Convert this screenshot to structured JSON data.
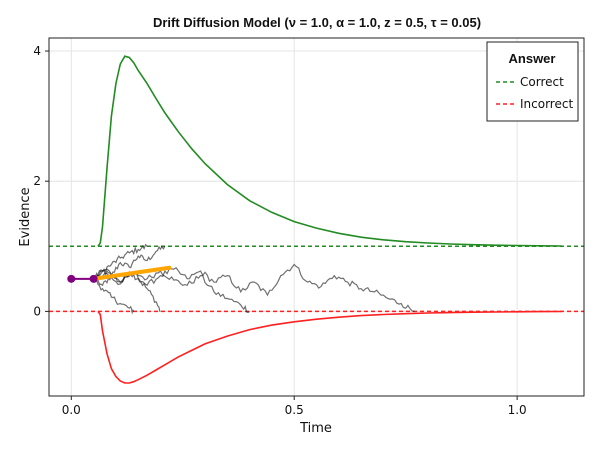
{
  "chart_data": {
    "type": "line",
    "title": "Drift Diffusion Model (ν = 1.0, α = 1.0, z = 0.5, τ = 0.05)",
    "xlabel": "Time",
    "ylabel": "Evidence",
    "xlim": [
      -0.05,
      1.15
    ],
    "ylim": [
      -1.3,
      4.2
    ],
    "xticks": [
      0.0,
      0.5,
      1.0
    ],
    "xtick_labels": [
      "0.0",
      "0.5",
      "1.0"
    ],
    "yticks": [
      0,
      2,
      4
    ],
    "ytick_labels": [
      "0",
      "2",
      "4"
    ],
    "grid": true,
    "legend": {
      "title": "Answer",
      "position": "top-right",
      "entries": [
        {
          "label": "Correct",
          "color": "#228b22",
          "style": "dashed"
        },
        {
          "label": "Incorrect",
          "color": "#ff2020",
          "style": "dashed"
        }
      ]
    },
    "thresholds": [
      {
        "name": "Correct",
        "y": 1.0,
        "color": "#228b22"
      },
      {
        "name": "Incorrect",
        "y": 0.0,
        "color": "#ff2020"
      }
    ],
    "density_correct": {
      "color": "#228b22",
      "x": [
        0.06,
        0.065,
        0.07,
        0.08,
        0.09,
        0.1,
        0.11,
        0.12,
        0.13,
        0.14,
        0.15,
        0.17,
        0.19,
        0.21,
        0.24,
        0.27,
        0.3,
        0.35,
        0.4,
        0.45,
        0.5,
        0.55,
        0.6,
        0.65,
        0.7,
        0.75,
        0.8,
        0.85,
        0.9,
        0.95,
        1.0,
        1.05,
        1.1
      ],
      "y": [
        1.0,
        1.05,
        1.3,
        2.2,
        3.0,
        3.5,
        3.8,
        3.92,
        3.9,
        3.82,
        3.7,
        3.5,
        3.27,
        3.05,
        2.76,
        2.5,
        2.27,
        1.95,
        1.7,
        1.52,
        1.38,
        1.28,
        1.2,
        1.14,
        1.1,
        1.07,
        1.05,
        1.035,
        1.025,
        1.017,
        1.012,
        1.008,
        1.005
      ]
    },
    "density_incorrect": {
      "color": "#ff2020",
      "x": [
        0.06,
        0.065,
        0.07,
        0.08,
        0.09,
        0.1,
        0.11,
        0.12,
        0.13,
        0.14,
        0.15,
        0.17,
        0.19,
        0.21,
        0.24,
        0.27,
        0.3,
        0.35,
        0.4,
        0.45,
        0.5,
        0.55,
        0.6,
        0.65,
        0.7,
        0.75,
        0.8,
        0.85,
        0.9,
        0.95,
        1.0,
        1.05,
        1.1
      ],
      "y": [
        0.0,
        -0.05,
        -0.3,
        -0.65,
        -0.88,
        -1.0,
        -1.07,
        -1.1,
        -1.1,
        -1.08,
        -1.05,
        -0.98,
        -0.9,
        -0.82,
        -0.7,
        -0.6,
        -0.5,
        -0.38,
        -0.28,
        -0.21,
        -0.16,
        -0.12,
        -0.09,
        -0.065,
        -0.048,
        -0.035,
        -0.025,
        -0.018,
        -0.013,
        -0.009,
        -0.006,
        -0.004,
        -0.002
      ]
    },
    "non_decision": {
      "color": "#800080",
      "x": [
        0.0,
        0.05
      ],
      "y": [
        0.5,
        0.5
      ]
    },
    "drift": {
      "color": "#ffa500",
      "x": [
        0.05,
        0.22
      ],
      "y": [
        0.5,
        0.67
      ]
    },
    "traces": [
      {
        "x": [
          0.05,
          0.07,
          0.09,
          0.11,
          0.13,
          0.15,
          0.17,
          0.19,
          0.21
        ],
        "y": [
          0.5,
          0.62,
          0.55,
          0.75,
          0.68,
          0.85,
          0.78,
          0.92,
          1.0
        ]
      },
      {
        "x": [
          0.05,
          0.07,
          0.09,
          0.11,
          0.13,
          0.15,
          0.17,
          0.19,
          0.2
        ],
        "y": [
          0.5,
          0.4,
          0.55,
          0.45,
          0.6,
          0.5,
          0.35,
          0.15,
          0.0
        ]
      },
      {
        "x": [
          0.05,
          0.07,
          0.09,
          0.11,
          0.13,
          0.15,
          0.17
        ],
        "y": [
          0.5,
          0.62,
          0.72,
          0.82,
          0.9,
          0.95,
          1.0
        ]
      },
      {
        "x": [
          0.05,
          0.07,
          0.09,
          0.11,
          0.13,
          0.14
        ],
        "y": [
          0.5,
          0.35,
          0.22,
          0.12,
          0.05,
          0.0
        ]
      },
      {
        "x": [
          0.05,
          0.08,
          0.11,
          0.14,
          0.17,
          0.2,
          0.23,
          0.26,
          0.29,
          0.32,
          0.35,
          0.38,
          0.4
        ],
        "y": [
          0.5,
          0.58,
          0.42,
          0.6,
          0.5,
          0.62,
          0.48,
          0.4,
          0.55,
          0.3,
          0.2,
          0.1,
          0.0
        ]
      },
      {
        "x": [
          0.05,
          0.08,
          0.11,
          0.14,
          0.17,
          0.2,
          0.23,
          0.26,
          0.29,
          0.32,
          0.35,
          0.38,
          0.41,
          0.44,
          0.47,
          0.5,
          0.53,
          0.56,
          0.59,
          0.62,
          0.65,
          0.68,
          0.71,
          0.74,
          0.77
        ],
        "y": [
          0.5,
          0.65,
          0.45,
          0.6,
          0.4,
          0.55,
          0.65,
          0.5,
          0.62,
          0.45,
          0.55,
          0.3,
          0.45,
          0.25,
          0.55,
          0.72,
          0.45,
          0.38,
          0.55,
          0.45,
          0.35,
          0.3,
          0.2,
          0.12,
          0.0
        ]
      }
    ]
  }
}
